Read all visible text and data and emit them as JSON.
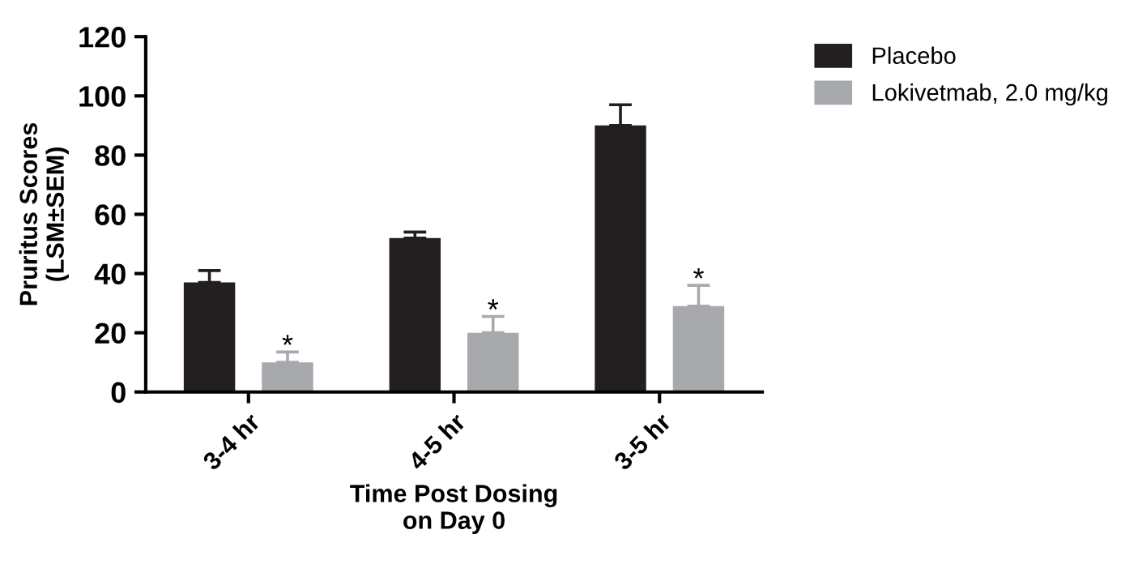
{
  "chart_data": {
    "type": "bar",
    "xlabel": "Time Post Dosing\non Day 0",
    "ylabel": "Pruritus Scores\n(LSM±SEM)",
    "categories": [
      "3-4 hr",
      "4-5 hr",
      "3-5 hr"
    ],
    "series": [
      {
        "name": "Placebo",
        "color": "#231f20",
        "values": [
          37,
          52,
          90
        ],
        "errors": [
          [
            37,
            41
          ],
          [
            52,
            54
          ],
          [
            90,
            97
          ]
        ]
      },
      {
        "name": "Lokivetmab, 2.0 mg/kg",
        "color": "#a7a9ac",
        "values": [
          10,
          20,
          29
        ],
        "errors": [
          [
            10,
            13.5
          ],
          [
            20,
            25.5
          ],
          [
            29,
            36
          ]
        ]
      }
    ],
    "annotations": [
      "*",
      "*",
      "*"
    ],
    "ylim": [
      0,
      120
    ],
    "yticks": [
      0,
      20,
      40,
      60,
      80,
      100,
      120
    ],
    "grid": false,
    "legend": "top right"
  }
}
